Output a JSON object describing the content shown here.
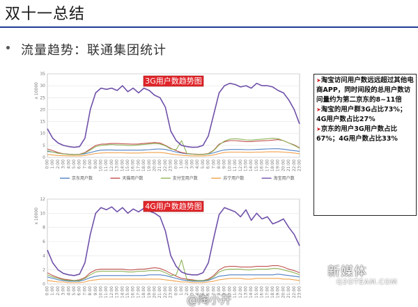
{
  "slide": {
    "title": "双十一总结",
    "subtitle": "流量趋势：联通集团统计"
  },
  "notes": [
    "淘宝访问用户数远远超过其他电商APP，同时间段的总用户数访问量约为第二京东的8~11倍",
    "淘宝的用户群3G占比73%；4G用户数占比27%",
    "京东的用户3G用户数占比67%；4G用户数占比33%"
  ],
  "watermark": {
    "text": "新媒体",
    "url": "Q2OTEAM.COM"
  },
  "author": "@陶小开",
  "colors": {
    "taobao": "#6e4fa8",
    "jingdong": "#4f7fc4",
    "tianmao": "#c0504d",
    "zhifubao": "#8db356",
    "suning": "#f0a04b",
    "title_box": "#e0262b"
  },
  "chart_data": [
    {
      "type": "line",
      "title": "3G用户数趋势图",
      "ylabel": "x 10000",
      "ylim": [
        0,
        35
      ],
      "yticks": [
        0,
        5,
        10,
        15,
        20,
        25,
        30,
        35
      ],
      "x": [
        "0:00",
        "1:00",
        "2:00",
        "3:00",
        "4:00",
        "5:00",
        "6:00",
        "7:00",
        "8:00",
        "9:00",
        "10:00",
        "11:00",
        "12:00",
        "13:00",
        "14:00",
        "15:00",
        "16:00",
        "17:00",
        "18:00",
        "19:00",
        "20:00",
        "21:00",
        "22:00",
        "23:00",
        "0:00",
        "1:00",
        "2:00",
        "3:00",
        "4:00",
        "5:00",
        "6:00",
        "7:00",
        "8:00",
        "9:00",
        "10:00",
        "11:00",
        "12:00",
        "13:00",
        "14:00",
        "15:00",
        "16:00",
        "17:00",
        "18:00",
        "19:00",
        "20:00",
        "21:00",
        "22:00",
        "23:00"
      ],
      "legend": "bottom",
      "series": [
        {
          "name": "京东用户数",
          "values": [
            2.5,
            2.2,
            1.8,
            1.5,
            1.3,
            1.2,
            1.2,
            1.5,
            2.0,
            2.6,
            3.0,
            3.1,
            3.1,
            3.0,
            3.0,
            3.0,
            3.0,
            3.0,
            3.1,
            3.2,
            3.4,
            3.5,
            3.3,
            2.8,
            2.2,
            1.8,
            1.5,
            1.3,
            1.2,
            1.2,
            1.4,
            1.9,
            2.6,
            3.1,
            3.3,
            3.3,
            3.3,
            3.2,
            3.2,
            3.3,
            3.4,
            3.5,
            3.6,
            3.6,
            3.4,
            3.1,
            2.8,
            2.5
          ]
        },
        {
          "name": "天猫用户数",
          "values": [
            3.5,
            2.8,
            2.0,
            1.5,
            1.3,
            1.2,
            1.3,
            2.0,
            3.5,
            5.0,
            5.5,
            5.6,
            5.8,
            5.8,
            5.7,
            5.6,
            5.5,
            5.6,
            5.8,
            6.0,
            6.2,
            6.0,
            5.0,
            3.8,
            2.8,
            2.0,
            1.6,
            1.4,
            1.3,
            1.3,
            1.6,
            3.0,
            5.5,
            6.5,
            7.0,
            7.0,
            6.8,
            6.6,
            6.6,
            6.8,
            6.9,
            7.0,
            7.2,
            7.4,
            7.0,
            6.0,
            5.2,
            4.0
          ]
        },
        {
          "name": "支付宝用户数",
          "values": [
            2.8,
            2.2,
            1.7,
            1.4,
            1.2,
            1.1,
            1.2,
            1.8,
            3.0,
            4.5,
            5.0,
            5.2,
            5.4,
            5.2,
            5.2,
            5.0,
            5.0,
            5.2,
            5.4,
            5.6,
            5.8,
            5.6,
            4.8,
            3.5,
            3.2,
            7.0,
            1.6,
            1.3,
            1.2,
            1.2,
            1.5,
            2.8,
            5.2,
            6.8,
            7.6,
            7.8,
            7.6,
            7.3,
            7.2,
            7.4,
            7.6,
            7.8,
            8.0,
            7.8,
            7.0,
            6.0,
            5.0,
            3.8
          ]
        },
        {
          "name": "苏宁用户数",
          "values": [
            1.2,
            1.0,
            0.8,
            0.7,
            0.6,
            0.6,
            0.6,
            0.8,
            1.2,
            1.6,
            1.8,
            1.9,
            1.9,
            1.9,
            1.9,
            1.8,
            1.8,
            1.8,
            1.9,
            2.0,
            2.0,
            2.0,
            1.8,
            1.4,
            1.1,
            0.9,
            0.7,
            0.6,
            0.6,
            0.6,
            0.7,
            1.0,
            1.6,
            2.0,
            2.2,
            2.2,
            2.2,
            2.1,
            2.1,
            2.2,
            2.2,
            2.3,
            2.3,
            2.3,
            2.2,
            2.0,
            1.8,
            1.5
          ]
        },
        {
          "name": "淘宝用户数",
          "values": [
            12,
            8,
            6,
            5,
            4.5,
            4.2,
            4.5,
            8,
            20,
            27,
            29,
            28.5,
            29,
            28,
            30,
            27.5,
            29,
            27,
            29,
            28,
            26,
            25,
            21,
            11,
            7,
            5,
            4.5,
            4.2,
            4.3,
            5,
            9,
            18,
            27,
            30,
            31,
            30.5,
            29.5,
            30,
            29,
            31,
            30,
            30,
            29.5,
            28,
            27,
            24,
            20,
            14
          ]
        }
      ]
    },
    {
      "type": "line",
      "title": "4G用户数趋势图",
      "ylabel": "x 10000",
      "ylim": [
        0,
        12
      ],
      "yticks": [
        0,
        2,
        4,
        6,
        8,
        10,
        12
      ],
      "x": [
        "0:00",
        "1:00",
        "2:00",
        "3:00",
        "4:00",
        "5:00",
        "6:00",
        "7:00",
        "8:00",
        "9:00",
        "10:00",
        "11:00",
        "12:00",
        "13:00",
        "14:00",
        "15:00",
        "16:00",
        "17:00",
        "18:00",
        "19:00",
        "20:00",
        "21:00",
        "22:00",
        "23:00",
        "0:00",
        "1:00",
        "2:00",
        "3:00",
        "4:00",
        "5:00",
        "6:00",
        "7:00",
        "8:00",
        "9:00",
        "10:00",
        "11:00",
        "12:00",
        "13:00",
        "14:00",
        "15:00",
        "16:00",
        "17:00",
        "18:00",
        "19:00",
        "20:00",
        "21:00",
        "22:00",
        "23:00"
      ],
      "series": [
        {
          "name": "京东用户数",
          "values": [
            1.0,
            0.8,
            0.6,
            0.5,
            0.4,
            0.4,
            0.4,
            0.6,
            0.9,
            1.1,
            1.2,
            1.2,
            1.2,
            1.2,
            1.2,
            1.2,
            1.2,
            1.2,
            1.2,
            1.3,
            1.3,
            1.3,
            1.2,
            1.0,
            0.8,
            0.6,
            0.5,
            0.4,
            0.4,
            0.4,
            0.5,
            0.8,
            1.1,
            1.2,
            1.3,
            1.3,
            1.3,
            1.3,
            1.3,
            1.3,
            1.3,
            1.3,
            1.3,
            1.4,
            1.3,
            1.2,
            1.1,
            1.0
          ]
        },
        {
          "name": "天猫用户数",
          "values": [
            1.6,
            1.2,
            0.9,
            0.7,
            0.6,
            0.5,
            0.6,
            0.9,
            1.6,
            2.0,
            2.1,
            2.1,
            2.1,
            2.1,
            2.1,
            2.0,
            2.0,
            2.1,
            2.1,
            2.2,
            2.3,
            2.2,
            1.9,
            1.5,
            1.1,
            0.8,
            0.7,
            0.6,
            0.5,
            0.5,
            0.7,
            1.2,
            2.0,
            2.4,
            2.5,
            2.5,
            2.4,
            2.4,
            2.4,
            2.5,
            2.5,
            2.5,
            2.6,
            2.6,
            2.4,
            2.1,
            1.9,
            1.6
          ]
        },
        {
          "name": "支付宝用户数",
          "values": [
            1.3,
            1.0,
            0.8,
            0.6,
            0.5,
            0.5,
            0.5,
            0.8,
            1.3,
            1.7,
            1.8,
            1.8,
            1.8,
            1.8,
            1.8,
            1.7,
            1.7,
            1.8,
            1.8,
            1.9,
            1.9,
            1.9,
            1.6,
            1.2,
            1.3,
            3.4,
            0.6,
            0.5,
            0.5,
            0.5,
            0.6,
            1.0,
            1.7,
            2.0,
            2.1,
            2.1,
            2.1,
            2.0,
            2.0,
            2.1,
            2.1,
            2.1,
            2.2,
            2.2,
            2.0,
            1.8,
            1.6,
            1.3
          ]
        },
        {
          "name": "苏宁用户数",
          "values": [
            0.5,
            0.4,
            0.3,
            0.3,
            0.2,
            0.2,
            0.2,
            0.3,
            0.5,
            0.6,
            0.7,
            0.7,
            0.7,
            0.7,
            0.7,
            0.7,
            0.7,
            0.7,
            0.7,
            0.7,
            0.7,
            0.7,
            0.6,
            0.5,
            0.4,
            0.3,
            0.3,
            0.2,
            0.2,
            0.2,
            0.3,
            0.4,
            0.6,
            0.7,
            0.8,
            0.8,
            0.8,
            0.7,
            0.7,
            0.8,
            0.8,
            0.8,
            0.8,
            0.8,
            0.7,
            0.7,
            0.6,
            0.5
          ]
        },
        {
          "name": "淘宝用户数",
          "values": [
            4.8,
            3.0,
            2.0,
            1.5,
            1.3,
            1.2,
            1.4,
            3.0,
            7.0,
            10.0,
            10.8,
            10.5,
            10.9,
            10.2,
            10.8,
            10.0,
            10.6,
            10.2,
            10.7,
            10.3,
            10.0,
            9.5,
            7.5,
            4.0,
            2.5,
            1.7,
            1.4,
            1.3,
            1.3,
            1.6,
            3.0,
            6.5,
            9.8,
            10.8,
            10.5,
            10.2,
            9.5,
            10.5,
            9.0,
            10.0,
            9.2,
            9.5,
            8.5,
            8.8,
            9.2,
            8.0,
            7.0,
            5.4
          ]
        }
      ]
    }
  ]
}
